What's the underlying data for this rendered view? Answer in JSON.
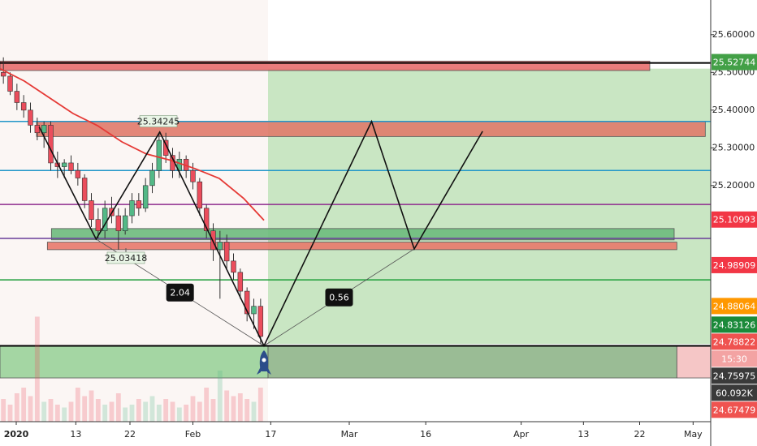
{
  "chart_data": {
    "type": "candlestick",
    "xlim": [
      0,
      105
    ],
    "ylim": [
      24.574,
      25.692
    ],
    "yticks": [
      {
        "value": 25.6,
        "label": "25.60000"
      },
      {
        "value": 25.5,
        "label": "25.50000"
      },
      {
        "value": 25.4,
        "label": "25.40000"
      },
      {
        "value": 25.3,
        "label": "25.30000"
      },
      {
        "value": 25.2,
        "label": "25.20000"
      }
    ],
    "xticks": [
      {
        "value": 2.4,
        "label": "2020"
      },
      {
        "value": 11.2,
        "label": "13"
      },
      {
        "value": 19.2,
        "label": "22"
      },
      {
        "value": 28.5,
        "label": "Feb"
      },
      {
        "value": 40.0,
        "label": "17"
      },
      {
        "value": 51.6,
        "label": "Mar"
      },
      {
        "value": 62.9,
        "label": "16"
      },
      {
        "value": 77.0,
        "label": "Apr"
      },
      {
        "value": 86.2,
        "label": "13"
      },
      {
        "value": 94.5,
        "label": "22"
      },
      {
        "value": 102.4,
        "label": "May"
      }
    ],
    "up_color": "#53b987",
    "down_color": "#eb4d5c",
    "x": [
      0.5,
      1.5,
      2.5,
      3.5,
      4.5,
      5.5,
      6.5,
      7.5,
      8.5,
      9.5,
      10.5,
      11.5,
      12.5,
      13.5,
      14.5,
      15.5,
      16.5,
      17.5,
      18.5,
      19.5,
      20.5,
      21.5,
      22.5,
      23.5,
      24.5,
      25.5,
      26.5,
      27.5,
      28.5,
      29.5,
      30.5,
      31.5,
      32.5,
      33.5,
      34.5,
      35.5,
      36.5,
      37.5,
      38.5
    ],
    "open": [
      25.5,
      25.49,
      25.45,
      25.42,
      25.4,
      25.36,
      25.34,
      25.36,
      25.26,
      25.25,
      25.26,
      25.24,
      25.22,
      25.16,
      25.11,
      25.08,
      25.14,
      25.12,
      25.08,
      25.12,
      25.16,
      25.14,
      25.2,
      25.24,
      25.32,
      25.28,
      25.24,
      25.27,
      25.24,
      25.21,
      25.14,
      25.08,
      25.03,
      25.05,
      25.0,
      24.97,
      24.92,
      24.86,
      24.88
    ],
    "high": [
      25.54,
      25.5,
      25.47,
      25.44,
      25.42,
      25.38,
      25.37,
      25.37,
      25.29,
      25.27,
      25.28,
      25.26,
      25.23,
      25.18,
      25.14,
      25.16,
      25.17,
      25.14,
      25.14,
      25.18,
      25.18,
      25.22,
      25.26,
      25.34,
      25.34,
      25.3,
      25.29,
      25.28,
      25.26,
      25.22,
      25.15,
      25.1,
      25.08,
      25.07,
      25.02,
      24.98,
      24.93,
      24.9,
      24.9
    ],
    "low": [
      25.47,
      25.44,
      25.4,
      25.38,
      25.34,
      25.32,
      25.3,
      25.24,
      25.22,
      25.22,
      25.23,
      25.2,
      25.14,
      25.09,
      25.06,
      25.06,
      25.1,
      25.03,
      25.07,
      25.1,
      25.12,
      25.13,
      25.18,
      25.22,
      25.26,
      25.22,
      25.22,
      25.22,
      25.19,
      25.12,
      25.06,
      25.0,
      24.9,
      24.98,
      24.95,
      24.9,
      24.84,
      24.82,
      24.78
    ],
    "close": [
      25.49,
      25.45,
      25.42,
      25.4,
      25.36,
      25.34,
      25.36,
      25.26,
      25.25,
      25.26,
      25.24,
      25.22,
      25.16,
      25.11,
      25.08,
      25.14,
      25.12,
      25.08,
      25.12,
      25.16,
      25.14,
      25.2,
      25.24,
      25.32,
      25.28,
      25.24,
      25.27,
      25.24,
      25.21,
      25.14,
      25.08,
      25.03,
      25.05,
      25.0,
      24.97,
      24.92,
      24.86,
      24.88,
      24.8
    ],
    "volume": [
      40,
      30,
      50,
      60,
      45,
      185,
      35,
      40,
      30,
      25,
      35,
      60,
      45,
      55,
      40,
      30,
      35,
      50,
      25,
      30,
      40,
      35,
      45,
      30,
      40,
      35,
      25,
      30,
      45,
      35,
      60,
      40,
      90,
      55,
      45,
      50,
      40,
      35,
      60
    ],
    "volume_lim": [
      0,
      200
    ],
    "moving_average": {
      "color": "#e53935",
      "x": [
        0,
        3.6,
        7.2,
        10.8,
        14.4,
        18,
        21.6,
        25.2,
        28.8,
        32.4,
        36,
        39
      ],
      "values": [
        25.51,
        25.477,
        25.434,
        25.391,
        25.359,
        25.316,
        25.284,
        25.267,
        25.245,
        25.219,
        25.166,
        25.108
      ]
    },
    "levels": [
      {
        "value": 25.525,
        "color": "#000000"
      },
      {
        "value": 25.37,
        "color": "#2196c9"
      },
      {
        "value": 25.24,
        "color": "#2196c9"
      },
      {
        "value": 25.15,
        "color": "#8e2a8e"
      },
      {
        "value": 25.06,
        "color": "#6a3d9a"
      },
      {
        "value": 24.95,
        "color": "#1e9e3a"
      },
      {
        "value": 24.775,
        "color": "#000000"
      }
    ],
    "zones": [
      {
        "x": [
          39.6,
          105
        ],
        "y": [
          24.78,
          25.51
        ],
        "color": "#c3e3bd"
      },
      {
        "x": [
          0,
          96
        ],
        "y": [
          25.505,
          25.53
        ],
        "color": "#e86e6e"
      },
      {
        "x": [
          5.4,
          104.2
        ],
        "y": [
          25.33,
          25.37
        ],
        "color": "#e07a6a"
      },
      {
        "x": [
          7.6,
          99.6
        ],
        "y": [
          25.056,
          25.086
        ],
        "color": "#6dbb7d"
      },
      {
        "x": [
          7.0,
          100
        ],
        "y": [
          25.03,
          25.05
        ],
        "color": "#e8796c"
      },
      {
        "x": [
          0,
          39.6
        ],
        "y": [
          24.69,
          24.775
        ],
        "color": "#9ad39a"
      },
      {
        "x": [
          39.6,
          100
        ],
        "y": [
          24.69,
          24.775
        ],
        "color": "#8fb58a"
      },
      {
        "x": [
          100,
          105
        ],
        "y": [
          24.69,
          24.775
        ],
        "color": "#f4c0c0"
      }
    ],
    "pattern": {
      "x": [
        5.8,
        14.2,
        23.6,
        39.0,
        54.9,
        61.2,
        71.3
      ],
      "values": [
        25.355,
        25.058,
        25.342,
        24.775,
        25.37,
        25.032,
        25.344
      ]
    },
    "ratios": [
      {
        "label": "2.04",
        "x": [
          14.2,
          39.0
        ],
        "values": [
          25.058,
          24.775
        ]
      },
      {
        "label": "0.56",
        "x": [
          39.0,
          61.2
        ],
        "values": [
          24.775,
          25.032
        ]
      }
    ],
    "price_labels": [
      {
        "value": 25.34245,
        "label": "25.34245",
        "x": 23.4,
        "side": "top"
      },
      {
        "value": 25.03418,
        "label": "25.03418",
        "x": 18.6,
        "side": "bottom"
      }
    ],
    "right_labels": [
      {
        "value": 25.52744,
        "label": "25.52744",
        "color": "#43a047"
      },
      {
        "value": 25.10993,
        "label": "25.10993",
        "color": "#f23645"
      },
      {
        "value": 24.98909,
        "label": "24.98909",
        "color": "#f23645"
      },
      {
        "value": 24.88064,
        "label": "24.88064",
        "color": "#ff9800"
      },
      {
        "value": 24.83126,
        "label": "24.83126",
        "color": "#1b8a3a"
      },
      {
        "value": 24.78822,
        "label": "24.78822",
        "color": "#ef5350"
      },
      {
        "label": "15:30",
        "color": "#f3a3a3"
      },
      {
        "value": 24.75975,
        "label": "24.75975",
        "color": "#3a3a3a"
      },
      {
        "label": "60.092K",
        "color": "#3a3a3a"
      },
      {
        "value": 24.67479,
        "label": "24.67479",
        "color": "#ef5350"
      }
    ]
  }
}
